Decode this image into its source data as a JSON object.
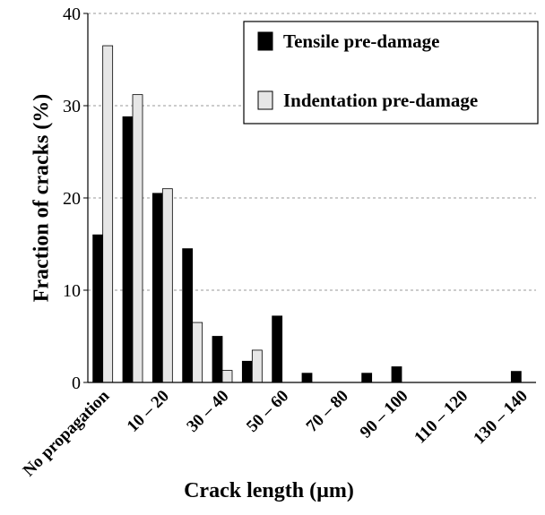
{
  "chart_data": {
    "type": "bar",
    "x_label": "Crack length (µm)",
    "y_label": "Fraction of cracks (%)",
    "categories": [
      "No propagation",
      null,
      "10 – 20",
      null,
      "30 – 40",
      null,
      "50 – 60",
      null,
      "70 – 80",
      null,
      "90 – 100",
      null,
      "110 – 120",
      null,
      "130 – 140"
    ],
    "series": [
      {
        "name": "Tensile pre-damage",
        "color": "#000000",
        "values": [
          16,
          28.8,
          20.5,
          14.5,
          5,
          2.3,
          7.2,
          1.0,
          0,
          1.0,
          1.7,
          0,
          0,
          0,
          1.2
        ]
      },
      {
        "name": "Indentation pre-damage",
        "color": "#e6e6e6",
        "values": [
          36.5,
          31.2,
          21,
          6.5,
          1.3,
          3.5,
          0,
          0,
          0,
          0,
          0,
          0,
          0,
          0,
          0
        ]
      }
    ],
    "ylim": [
      0,
      40
    ],
    "yticks": [
      0,
      10,
      20,
      30,
      40
    ],
    "grid": true,
    "legend": "upper right"
  }
}
